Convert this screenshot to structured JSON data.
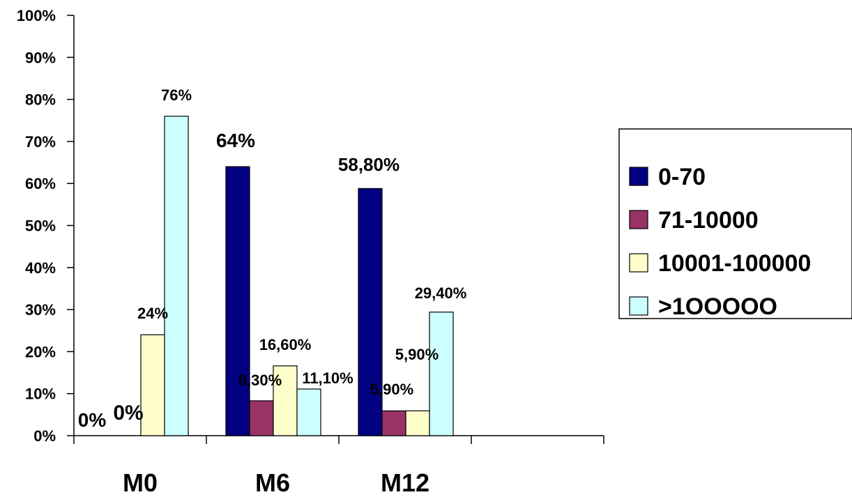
{
  "chart_data": {
    "type": "bar",
    "categories": [
      "M0",
      "M6",
      "M12"
    ],
    "series": [
      {
        "name": "0-70",
        "color": "#000080",
        "values": [
          0,
          64,
          58.8
        ],
        "labels": [
          "0%",
          "64%",
          "58,80%"
        ]
      },
      {
        "name": "71-10000",
        "color": "#993366",
        "values": [
          0,
          8.3,
          5.9
        ],
        "labels": [
          "0%",
          "8,30%",
          "5,90%"
        ]
      },
      {
        "name": "10001-100000",
        "color": "#FFFFCC",
        "values": [
          24,
          16.6,
          5.9
        ],
        "labels": [
          "24%",
          "16,60%",
          "5,90%"
        ]
      },
      {
        "name": ">1OOOOO",
        "color": "#CCFFFF",
        "values": [
          76,
          11.1,
          29.4
        ],
        "labels": [
          "76%",
          "11,10%",
          "29,40%"
        ]
      }
    ],
    "ylim": [
      0,
      100
    ],
    "yticks": [
      "0%",
      "10%",
      "20%",
      "30%",
      "40%",
      "50%",
      "60%",
      "70%",
      "80%",
      "90%",
      "100%"
    ],
    "legend": "right",
    "grid": false
  }
}
